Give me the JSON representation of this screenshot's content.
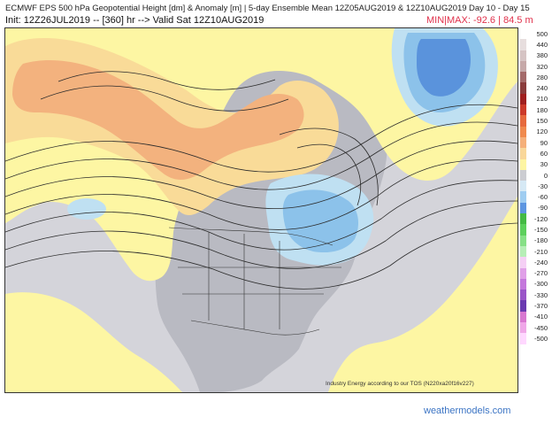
{
  "header": {
    "title_line1": "ECMWF EPS 500 hPa Geopotential Height [dm] & Anomaly [m] | 5-day Ensemble Mean 12Z05AUG2019 & 12Z10AUG2019",
    "period": "Day 10 - Day 15",
    "title_line2": "Init: 12Z26JUL2019 -- [360] hr --> Valid Sat 12Z10AUG2019",
    "minmax": "MIN|MAX: -92.6 | 84.5 m"
  },
  "map": {
    "copyright": "Industry Energy according to our TOS (N220xa20f16v227)",
    "colors": {
      "land": "#b9bac2",
      "ocean": "#d4d4da",
      "near_zero": "#cfcfd6",
      "pos_30": "#fdf6a3",
      "pos_60": "#f9db98",
      "pos_90": "#f3b27e",
      "neg_30": "#bfe0f2",
      "neg_60": "#8cc2ea",
      "neg_90": "#5a93dc",
      "contour": "#2b2b2b",
      "border": "#333333"
    }
  },
  "scale": {
    "labels": [
      "500",
      "440",
      "380",
      "320",
      "280",
      "240",
      "210",
      "180",
      "150",
      "120",
      "90",
      "60",
      "30",
      "0",
      "-30",
      "-60",
      "-90",
      "-120",
      "-150",
      "-180",
      "-210",
      "-240",
      "-270",
      "-300",
      "-330",
      "-370",
      "-410",
      "-450",
      "-500"
    ],
    "colors": [
      "#ffffff",
      "#e7dede",
      "#d6c4c4",
      "#c6a9a9",
      "#a46a6a",
      "#8a3c3c",
      "#a01f1f",
      "#cc3a2a",
      "#e66a3e",
      "#f08a4e",
      "#f5b07a",
      "#f9d79a",
      "#fdf5a3",
      "#cccdd2",
      "#d6e9f5",
      "#9fcdf1",
      "#5d96e1",
      "#44ba44",
      "#5cd05c",
      "#86e086",
      "#b6eeb6",
      "#f5d0f5",
      "#e0a0e8",
      "#c478dc",
      "#9a55c8",
      "#6a3ab0",
      "#d878d0",
      "#f0a8e8",
      "#ffd8ff"
    ]
  },
  "footer": {
    "brand": "weathermodels.com"
  }
}
